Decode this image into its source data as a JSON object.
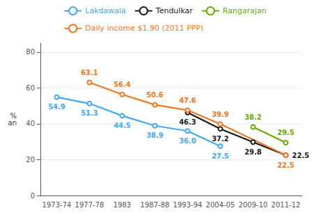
{
  "chart_data": {
    "type": "line",
    "categories": [
      "1973-74",
      "1977-78",
      "1983",
      "1987-88",
      "1993-94",
      "2004-05",
      "2009-10",
      "2011-12"
    ],
    "series": [
      {
        "name": "Lakdawala",
        "color": "#3fa9f5",
        "values": [
          54.9,
          51.3,
          44.5,
          38.9,
          36.0,
          27.5,
          null,
          null
        ],
        "value_labels": [
          "54.9",
          "51.3",
          "44.5",
          "38.9",
          "36.0",
          "27.5",
          null,
          null
        ]
      },
      {
        "name": "Tendulkar",
        "color": "#1a1a1a",
        "values": [
          null,
          null,
          null,
          null,
          46.3,
          37.2,
          29.8,
          22.5
        ]
      },
      {
        "name": "Rangarajan",
        "color": "#6aaa00",
        "values": [
          null,
          null,
          null,
          null,
          null,
          null,
          38.2,
          29.5
        ]
      },
      {
        "name": "Daily income $1.90 (2011 PPP)",
        "color": "#f07820",
        "values": [
          null,
          63.1,
          56.4,
          50.6,
          47.6,
          39.9,
          null,
          22.5
        ]
      }
    ],
    "ylim": [
      0,
      85
    ],
    "yticks": [
      0,
      20,
      40,
      60,
      80
    ],
    "y_label": "%\nan",
    "grid": true,
    "legend": "top",
    "data_labels": true,
    "marker": "emptyCircle"
  }
}
